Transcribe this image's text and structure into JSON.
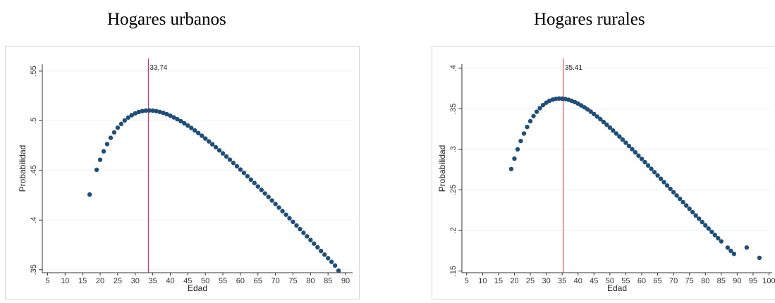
{
  "charts": [
    {
      "panel_title": "Hogares urbanos",
      "chart_data": {
        "type": "scatter",
        "title": "Hogares urbanos",
        "xlabel": "Edad",
        "ylabel": "Probabilidad",
        "xlim": [
          3.5,
          92
        ],
        "ylim": [
          0.347,
          0.557
        ],
        "xticks": [
          5,
          10,
          15,
          20,
          25,
          30,
          35,
          40,
          45,
          50,
          55,
          60,
          65,
          70,
          75,
          80,
          85,
          90
        ],
        "xtick_labels": [
          "5",
          "10",
          "15",
          "20",
          "25",
          "30",
          "35",
          "40",
          "45",
          "50",
          "55",
          "60",
          "65",
          "70",
          "75",
          "80",
          "85",
          "90"
        ],
        "yticks": [
          0.35,
          0.4,
          0.45,
          0.5,
          0.55
        ],
        "ytick_labels": [
          ".35",
          ".4",
          ".45",
          ".5",
          ".55"
        ],
        "grid": "horizontal",
        "vline": {
          "x": 33.74,
          "label": "33.74",
          "color": "#c2185b"
        },
        "marker_color": "#1f4e79",
        "x": [
          17,
          19,
          20,
          21,
          22,
          23,
          24,
          25,
          26,
          27,
          28,
          29,
          30,
          31,
          32,
          33,
          34,
          35,
          36,
          37,
          38,
          39,
          40,
          41,
          42,
          43,
          44,
          45,
          46,
          47,
          48,
          49,
          50,
          51,
          52,
          53,
          54,
          55,
          56,
          57,
          58,
          59,
          60,
          61,
          62,
          63,
          64,
          65,
          66,
          67,
          68,
          69,
          70,
          71,
          72,
          73,
          74,
          75,
          76,
          77,
          78,
          79,
          80,
          81,
          82,
          83,
          84,
          85,
          86,
          87,
          88
        ],
        "y": [
          0.4257,
          0.4506,
          0.4607,
          0.4692,
          0.4765,
          0.4828,
          0.4883,
          0.493,
          0.4968,
          0.5003,
          0.5032,
          0.5056,
          0.5074,
          0.5088,
          0.5097,
          0.5102,
          0.5104,
          0.5102,
          0.5097,
          0.5089,
          0.5079,
          0.5066,
          0.5051,
          0.5034,
          0.5016,
          0.4996,
          0.4974,
          0.4951,
          0.4927,
          0.4902,
          0.4876,
          0.4849,
          0.4821,
          0.4792,
          0.4763,
          0.4733,
          0.4702,
          0.4671,
          0.464,
          0.4608,
          0.4575,
          0.4542,
          0.4509,
          0.4475,
          0.4441,
          0.4407,
          0.4373,
          0.4338,
          0.4303,
          0.4268,
          0.4233,
          0.4197,
          0.4162,
          0.4126,
          0.409,
          0.4054,
          0.4018,
          0.3982,
          0.3945,
          0.3909,
          0.3872,
          0.3836,
          0.3799,
          0.3763,
          0.3726,
          0.3689,
          0.3652,
          0.3616,
          0.3579,
          0.3542,
          0.349
        ]
      }
    },
    {
      "panel_title": "Hogares rurales",
      "chart_data": {
        "type": "scatter",
        "title": "Hogares rurales",
        "xlabel": "Edad",
        "ylabel": "Probabilidad",
        "xlim": [
          3.5,
          101
        ],
        "ylim": [
          0.148,
          0.405
        ],
        "xticks": [
          5,
          10,
          15,
          20,
          25,
          30,
          35,
          40,
          45,
          50,
          55,
          60,
          65,
          70,
          75,
          80,
          85,
          90,
          95,
          100
        ],
        "xtick_labels": [
          "5",
          "10",
          "15",
          "20",
          "25",
          "30",
          "35",
          "40",
          "45",
          "50",
          "55",
          "60",
          "65",
          "70",
          "75",
          "80",
          "85",
          "90",
          "95",
          "100"
        ],
        "yticks": [
          0.15,
          0.2,
          0.25,
          0.3,
          0.35,
          0.4
        ],
        "ytick_labels": [
          ".15",
          ".2",
          ".25",
          ".3",
          ".35",
          ".4"
        ],
        "grid": "horizontal",
        "vline": {
          "x": 35.41,
          "label": "35.41",
          "color": "#e53935"
        },
        "marker_color": "#1f4e79",
        "x": [
          19,
          20,
          21,
          22,
          23,
          24,
          25,
          26,
          27,
          28,
          29,
          30,
          31,
          32,
          33,
          34,
          35,
          36,
          37,
          38,
          39,
          40,
          41,
          42,
          43,
          44,
          45,
          46,
          47,
          48,
          49,
          50,
          51,
          52,
          53,
          54,
          55,
          56,
          57,
          58,
          59,
          60,
          61,
          62,
          63,
          64,
          65,
          66,
          67,
          68,
          69,
          70,
          71,
          72,
          73,
          74,
          75,
          76,
          77,
          78,
          79,
          80,
          81,
          82,
          83,
          84,
          85,
          87,
          88,
          89,
          93,
          97
        ],
        "y": [
          0.2757,
          0.2885,
          0.3,
          0.3103,
          0.3195,
          0.3276,
          0.3347,
          0.341,
          0.3463,
          0.3508,
          0.3545,
          0.3575,
          0.3598,
          0.3613,
          0.3622,
          0.3626,
          0.3625,
          0.362,
          0.3611,
          0.3598,
          0.3582,
          0.3563,
          0.3541,
          0.3518,
          0.3492,
          0.3464,
          0.3435,
          0.3404,
          0.3372,
          0.3338,
          0.3304,
          0.3268,
          0.3232,
          0.3195,
          0.3158,
          0.312,
          0.3081,
          0.3042,
          0.3002,
          0.2963,
          0.2922,
          0.2882,
          0.2842,
          0.2801,
          0.276,
          0.2719,
          0.2678,
          0.2637,
          0.2596,
          0.2554,
          0.2513,
          0.2472,
          0.2431,
          0.239,
          0.2349,
          0.2308,
          0.2267,
          0.2226,
          0.2185,
          0.2145,
          0.2104,
          0.2064,
          0.2024,
          0.1984,
          0.1944,
          0.1905,
          0.1866,
          0.1789,
          0.175,
          0.1712,
          0.179,
          0.1663
        ]
      }
    }
  ]
}
